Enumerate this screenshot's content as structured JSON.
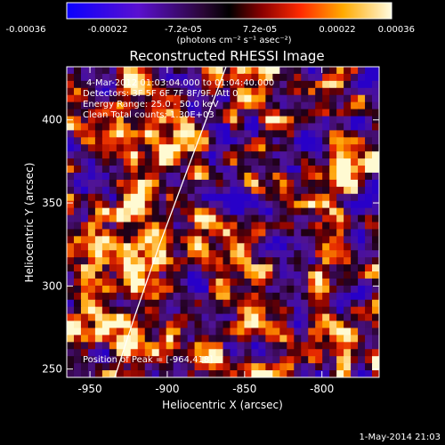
{
  "colorbar": {
    "ticks": [
      "-0.00036",
      "-0.00022",
      "-7.2e-05",
      "7.2e-05",
      "0.00022",
      "0.00036"
    ],
    "units": "(photons cm⁻² s⁻¹ asec⁻²)"
  },
  "chart_data": {
    "type": "heatmap",
    "title": "Reconstructed RHESSI Image",
    "xlabel": "Heliocentric X (arcsec)",
    "ylabel": "Heliocentric Y (arcsec)",
    "xlim": [
      -965,
      -763
    ],
    "ylim": [
      245,
      432
    ],
    "x_ticks": [
      "-950",
      "-900",
      "-850",
      "-800"
    ],
    "y_ticks": [
      "250",
      "300",
      "350",
      "400"
    ],
    "value_range": [
      -0.00036,
      0.00036
    ],
    "colormap": "blue-purple-red-orange-yellow-white",
    "annotations": [
      "4-Mar-2012 01:03:04.000 to 01:04:40.000",
      "Detectors: 3F 5F 6F 7F 8F/9F, Att 0",
      "Energy Range: 25.0 - 50.0 keV",
      "Clean     Total counts: 1.30E+03"
    ],
    "peak_label": "Position of Peak = [-964,418]",
    "limb_curve": [
      [
        -934,
        245
      ],
      [
        -921,
        282
      ],
      [
        -905,
        325
      ],
      [
        -885,
        375
      ],
      [
        -862,
        432
      ]
    ],
    "footer": "1-May-2014 21:03"
  }
}
